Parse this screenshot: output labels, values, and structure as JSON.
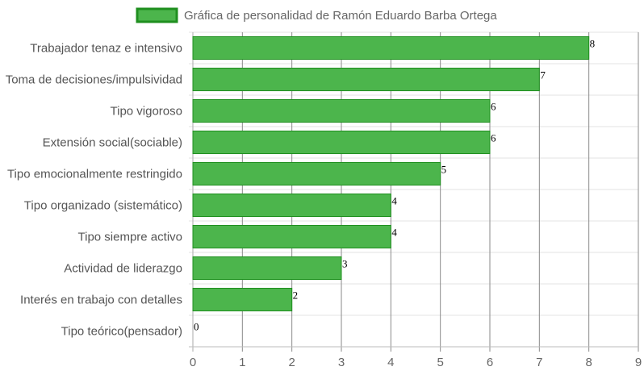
{
  "chart_data": {
    "type": "bar",
    "orientation": "horizontal",
    "categories": [
      "Trabajador tenaz e intensivo",
      "Toma de decisiones/impulsividad",
      "Tipo vigoroso",
      "Extensión social(sociable)",
      "Tipo emocionalmente restringido",
      "Tipo organizado (sistemático)",
      "Tipo siempre activo",
      "Actividad de liderazgo",
      "Interés en trabajo con detalles",
      "Tipo teórico(pensador)"
    ],
    "series": [
      {
        "name": "Gráfica de personalidad de Ramón Eduardo Barba Ortega",
        "values": [
          8,
          7,
          6,
          6,
          5,
          4,
          4,
          3,
          2,
          0
        ],
        "color": "#4cb54c",
        "border_color": "#1f8f1f"
      }
    ],
    "xlim": [
      0,
      9
    ],
    "x_ticks": [
      0,
      1,
      2,
      3,
      4,
      5,
      6,
      7,
      8,
      9
    ],
    "grid": true,
    "legend_position": "top",
    "data_labels": true
  }
}
